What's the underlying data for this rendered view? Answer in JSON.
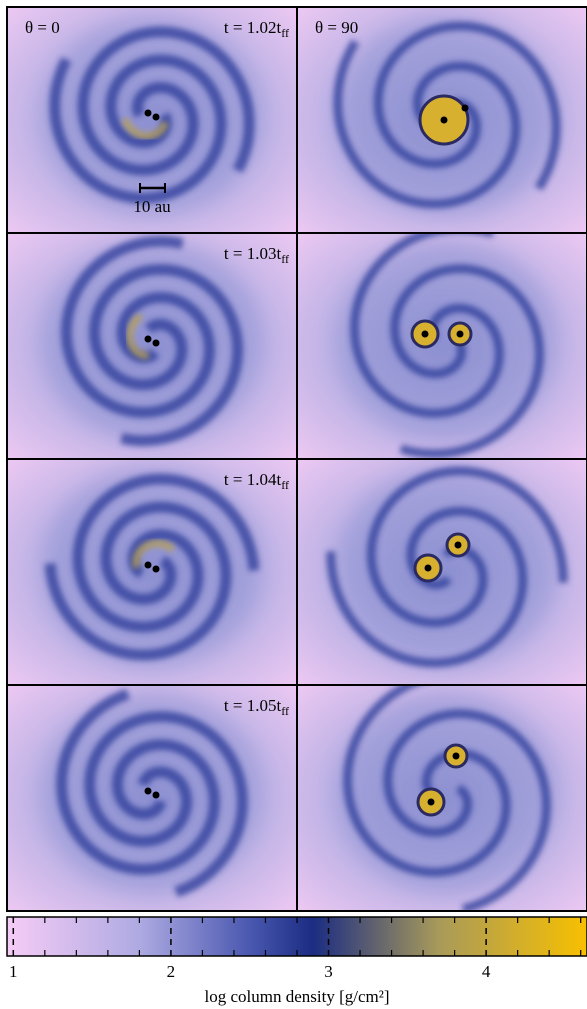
{
  "columns": [
    {
      "label": "θ = 0"
    },
    {
      "label": "θ = 90"
    }
  ],
  "rows": [
    {
      "time": "t = 1.02t",
      "time_sub": "ff"
    },
    {
      "time": "t = 1.03t",
      "time_sub": "ff"
    },
    {
      "time": "t = 1.04t",
      "time_sub": "ff"
    },
    {
      "time": "t = 1.05t",
      "time_sub": "ff"
    }
  ],
  "scale_bar": "10 au",
  "colorbar": {
    "label": "log column density [g/cm²]",
    "lim": [
      0.96,
      4.64
    ],
    "ticks": [
      1,
      2,
      3,
      4
    ],
    "minor_ticks": [
      1.2,
      1.4,
      1.6,
      1.8,
      2.2,
      2.4,
      2.6,
      2.8,
      3.2,
      3.4,
      3.6,
      3.8,
      4.2,
      4.4,
      4.6
    ],
    "colormap": [
      {
        "value": 0.96,
        "color": "#f6ccf6"
      },
      {
        "value": 1.8,
        "color": "#aeaae2"
      },
      {
        "value": 2.5,
        "color": "#4a58b0"
      },
      {
        "value": 2.9,
        "color": "#1b2c82"
      },
      {
        "value": 3.7,
        "color": "#a89a5a"
      },
      {
        "value": 4.64,
        "color": "#f8c000"
      }
    ]
  }
}
